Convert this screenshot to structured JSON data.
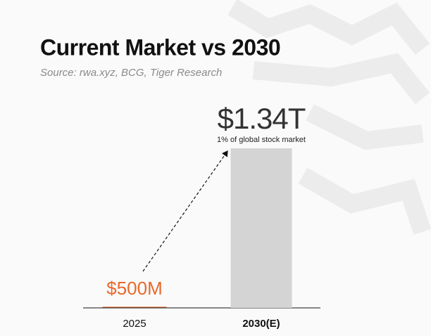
{
  "chart_data": {
    "type": "bar",
    "title": "Current Market vs 2030",
    "subtitle": "Source: rwa.xyz, BCG, Tiger Research",
    "categories": [
      "2025",
      "2030(E)"
    ],
    "values": [
      500000000,
      1340000000000
    ],
    "value_labels": [
      "$500M",
      "$1.34T"
    ],
    "colors": [
      "#e8692c",
      "#d4d4d4"
    ],
    "value_label_colors": [
      "#e8692c",
      "#333333"
    ],
    "annotations": [
      "1% of global stock market"
    ]
  }
}
